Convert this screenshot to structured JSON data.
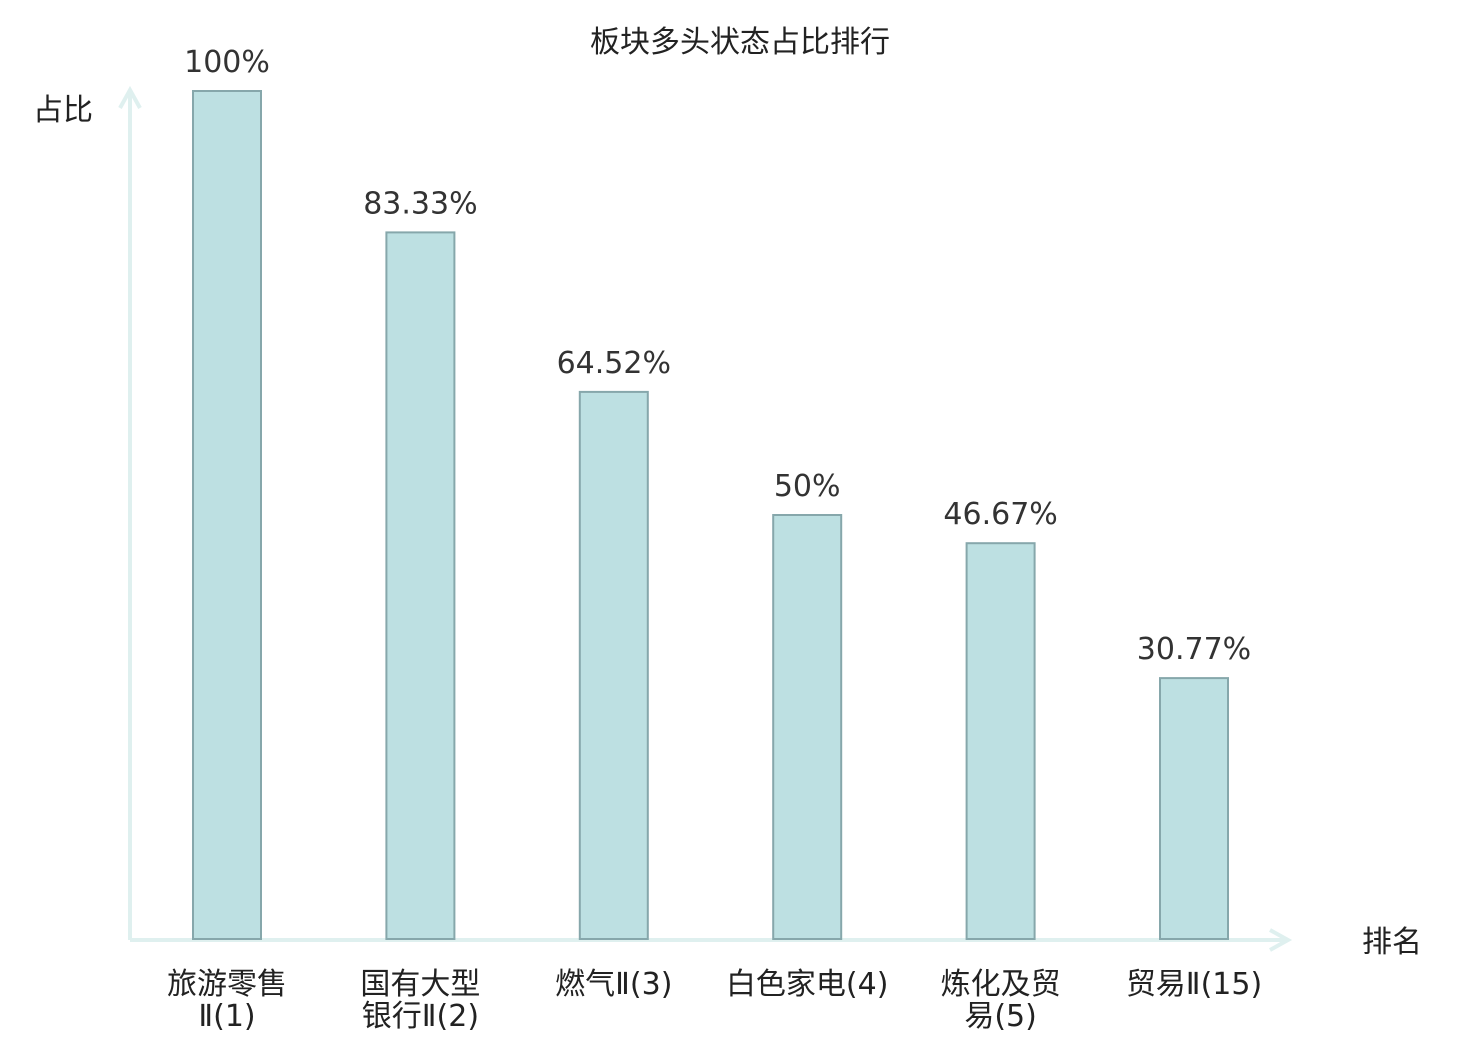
{
  "chart_data": {
    "type": "bar",
    "title": "板块多头状态占比排行",
    "ylabel": "占比",
    "xlabel": "排名",
    "ylim": [
      0,
      100
    ],
    "grid": false,
    "categories": [
      [
        "旅游零售",
        "Ⅱ(1)"
      ],
      [
        "国有大型",
        "银行Ⅱ(2)"
      ],
      [
        "燃气Ⅱ(3)"
      ],
      [
        "白色家电(4)"
      ],
      [
        "炼化及贸",
        "易(5)"
      ],
      [
        "贸易Ⅱ(15)"
      ]
    ],
    "values": [
      100,
      83.33,
      64.52,
      50,
      46.67,
      30.77
    ],
    "value_labels": [
      "100%",
      "83.33%",
      "64.52%",
      "50%",
      "46.67%",
      "30.77%"
    ],
    "highlight_index": 5
  },
  "colors": {
    "bar_fill": "#bde0e2",
    "bar_stroke": "#86a7ab",
    "axis": "#dff0ef",
    "text": "#222222",
    "value_text": "#333333",
    "highlight": "#d42020"
  }
}
